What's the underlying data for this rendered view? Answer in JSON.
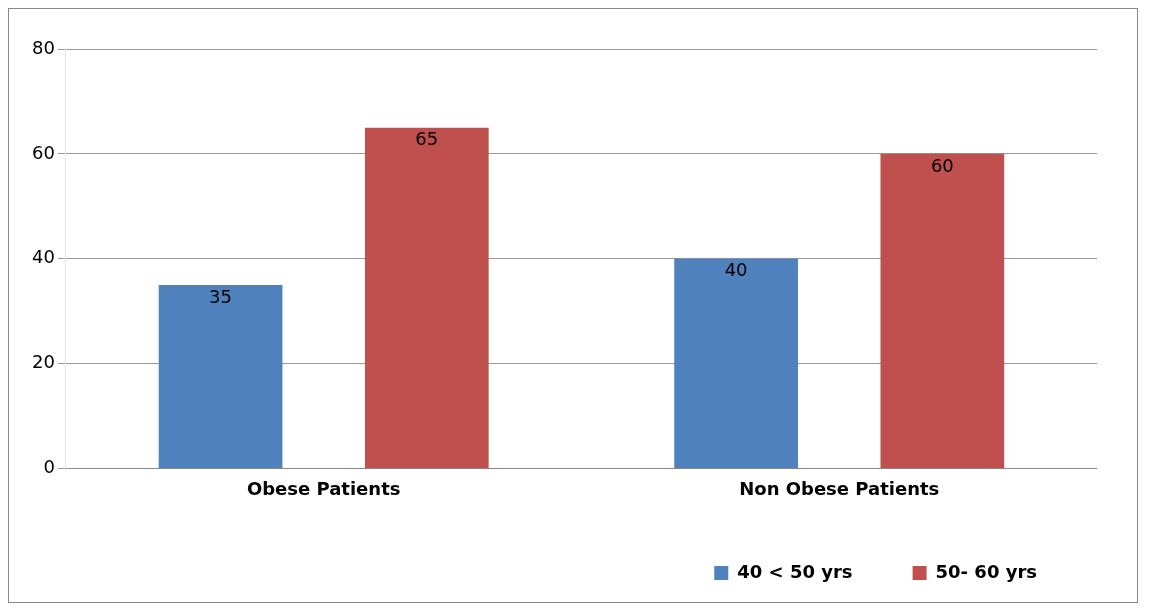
{
  "chart_data": {
    "type": "bar",
    "categories": [
      "Obese Patients",
      "Non Obese Patients"
    ],
    "series": [
      {
        "name": "40 < 50 yrs",
        "color": "#4f81bd",
        "values": [
          35,
          40
        ]
      },
      {
        "name": "50- 60 yrs",
        "color": "#c0504d",
        "values": [
          65,
          60
        ]
      }
    ],
    "ylim": [
      0,
      80
    ],
    "yticks": [
      0,
      20,
      40,
      60,
      80
    ],
    "grid": "y",
    "legend": "bottom right",
    "data_labels": true
  }
}
